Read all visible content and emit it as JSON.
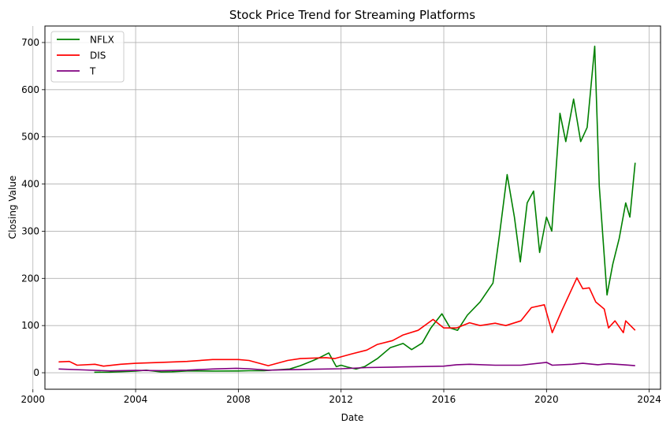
{
  "chart_data": {
    "type": "line",
    "title": "Stock Price Trend for Streaming Platforms",
    "xlabel": "Date",
    "ylabel": "Closing Value",
    "xlim": [
      "2000-06-20",
      "2024-06-10"
    ],
    "ylim": [
      -35,
      735
    ],
    "x_ticks": [
      "2000",
      "2004",
      "2008",
      "2012",
      "2016",
      "2020",
      "2024"
    ],
    "y_ticks": [
      0,
      100,
      200,
      300,
      400,
      500,
      600,
      700
    ],
    "grid": true,
    "legend": "top-left",
    "series": [
      {
        "name": "NFLX",
        "color": "#008000",
        "points": [
          [
            "2002-05-23",
            1.1
          ],
          [
            "2003-01-01",
            1.2
          ],
          [
            "2004-01-01",
            3.5
          ],
          [
            "2004-06-01",
            5.5
          ],
          [
            "2005-01-01",
            1.5
          ],
          [
            "2005-06-01",
            2.0
          ],
          [
            "2006-01-01",
            3.8
          ],
          [
            "2007-01-01",
            3.5
          ],
          [
            "2008-01-01",
            3.7
          ],
          [
            "2008-06-01",
            4.2
          ],
          [
            "2009-01-01",
            4.5
          ],
          [
            "2009-06-01",
            6.0
          ],
          [
            "2010-01-01",
            8.0
          ],
          [
            "2010-06-01",
            15.0
          ],
          [
            "2010-12-01",
            26.0
          ],
          [
            "2011-03-01",
            32.0
          ],
          [
            "2011-07-10",
            42.0
          ],
          [
            "2011-10-25",
            13.0
          ],
          [
            "2012-01-01",
            16.0
          ],
          [
            "2012-04-01",
            12.0
          ],
          [
            "2012-08-01",
            8.0
          ],
          [
            "2012-12-01",
            13.0
          ],
          [
            "2013-06-01",
            30.0
          ],
          [
            "2013-12-01",
            53.0
          ],
          [
            "2014-06-01",
            62.0
          ],
          [
            "2014-10-01",
            49.0
          ],
          [
            "2015-03-01",
            63.0
          ],
          [
            "2015-07-01",
            95.0
          ],
          [
            "2015-12-05",
            125.0
          ],
          [
            "2016-04-01",
            95.0
          ],
          [
            "2016-07-15",
            90.0
          ],
          [
            "2016-12-01",
            122.0
          ],
          [
            "2017-06-01",
            150.0
          ],
          [
            "2017-12-01",
            190.0
          ],
          [
            "2018-03-01",
            290.0
          ],
          [
            "2018-06-20",
            420.0
          ],
          [
            "2018-10-01",
            330.0
          ],
          [
            "2018-12-24",
            235.0
          ],
          [
            "2019-04-01",
            360.0
          ],
          [
            "2019-07-01",
            385.0
          ],
          [
            "2019-09-25",
            255.0
          ],
          [
            "2020-01-01",
            330.0
          ],
          [
            "2020-03-16",
            300.0
          ],
          [
            "2020-07-10",
            550.0
          ],
          [
            "2020-10-01",
            490.0
          ],
          [
            "2021-01-20",
            580.0
          ],
          [
            "2021-05-01",
            490.0
          ],
          [
            "2021-08-01",
            520.0
          ],
          [
            "2021-11-17",
            692.0
          ],
          [
            "2022-01-21",
            395.0
          ],
          [
            "2022-05-11",
            165.0
          ],
          [
            "2022-08-01",
            230.0
          ],
          [
            "2022-11-01",
            285.0
          ],
          [
            "2023-02-01",
            360.0
          ],
          [
            "2023-04-01",
            330.0
          ],
          [
            "2023-06-15",
            445.0
          ]
        ]
      },
      {
        "name": "DIS",
        "color": "#ff0000",
        "points": [
          [
            "2001-01-01",
            23.0
          ],
          [
            "2001-06-01",
            24.0
          ],
          [
            "2001-09-20",
            16.0
          ],
          [
            "2002-06-01",
            18.0
          ],
          [
            "2002-10-01",
            14.0
          ],
          [
            "2003-06-01",
            18.0
          ],
          [
            "2004-01-01",
            20.0
          ],
          [
            "2005-01-01",
            22.0
          ],
          [
            "2006-01-01",
            24.0
          ],
          [
            "2007-01-01",
            28.0
          ],
          [
            "2008-01-01",
            28.0
          ],
          [
            "2008-06-01",
            26.0
          ],
          [
            "2009-03-01",
            15.0
          ],
          [
            "2009-12-01",
            26.0
          ],
          [
            "2010-06-01",
            30.0
          ],
          [
            "2011-06-01",
            32.0
          ],
          [
            "2011-10-01",
            30.0
          ],
          [
            "2012-06-01",
            40.0
          ],
          [
            "2013-01-01",
            48.0
          ],
          [
            "2013-06-01",
            60.0
          ],
          [
            "2014-01-01",
            68.0
          ],
          [
            "2014-06-01",
            80.0
          ],
          [
            "2015-01-01",
            90.0
          ],
          [
            "2015-08-01",
            113.0
          ],
          [
            "2016-01-01",
            95.0
          ],
          [
            "2016-07-01",
            95.0
          ],
          [
            "2017-01-01",
            106.0
          ],
          [
            "2017-06-01",
            100.0
          ],
          [
            "2018-01-01",
            105.0
          ],
          [
            "2018-06-01",
            100.0
          ],
          [
            "2019-01-01",
            110.0
          ],
          [
            "2019-06-01",
            138.0
          ],
          [
            "2019-12-01",
            144.0
          ],
          [
            "2020-03-23",
            85.0
          ],
          [
            "2020-08-01",
            130.0
          ],
          [
            "2021-03-08",
            201.0
          ],
          [
            "2021-06-01",
            178.0
          ],
          [
            "2021-09-01",
            180.0
          ],
          [
            "2021-12-01",
            150.0
          ],
          [
            "2022-04-01",
            135.0
          ],
          [
            "2022-06-01",
            95.0
          ],
          [
            "2022-09-01",
            110.0
          ],
          [
            "2022-12-29",
            85.0
          ],
          [
            "2023-02-01",
            110.0
          ],
          [
            "2023-06-15",
            90.0
          ]
        ]
      },
      {
        "name": "T",
        "color": "#800080",
        "points": [
          [
            "2001-01-01",
            8.0
          ],
          [
            "2002-01-01",
            6.0
          ],
          [
            "2003-01-01",
            4.0
          ],
          [
            "2004-01-01",
            5.0
          ],
          [
            "2005-01-01",
            4.5
          ],
          [
            "2006-01-01",
            5.5
          ],
          [
            "2007-01-01",
            8.0
          ],
          [
            "2007-12-01",
            9.5
          ],
          [
            "2008-06-01",
            8.5
          ],
          [
            "2009-03-01",
            5.5
          ],
          [
            "2010-01-01",
            6.5
          ],
          [
            "2011-01-01",
            7.5
          ],
          [
            "2012-01-01",
            8.5
          ],
          [
            "2013-01-01",
            11.0
          ],
          [
            "2014-01-01",
            12.0
          ],
          [
            "2015-01-01",
            13.0
          ],
          [
            "2016-01-01",
            14.0
          ],
          [
            "2016-07-01",
            17.0
          ],
          [
            "2017-01-01",
            18.0
          ],
          [
            "2018-01-01",
            16.0
          ],
          [
            "2019-01-01",
            16.0
          ],
          [
            "2020-01-01",
            22.0
          ],
          [
            "2020-03-23",
            16.0
          ],
          [
            "2021-01-01",
            18.0
          ],
          [
            "2021-06-01",
            20.0
          ],
          [
            "2022-01-01",
            17.0
          ],
          [
            "2022-06-01",
            19.0
          ],
          [
            "2023-01-01",
            17.0
          ],
          [
            "2023-06-15",
            15.0
          ]
        ]
      }
    ]
  }
}
